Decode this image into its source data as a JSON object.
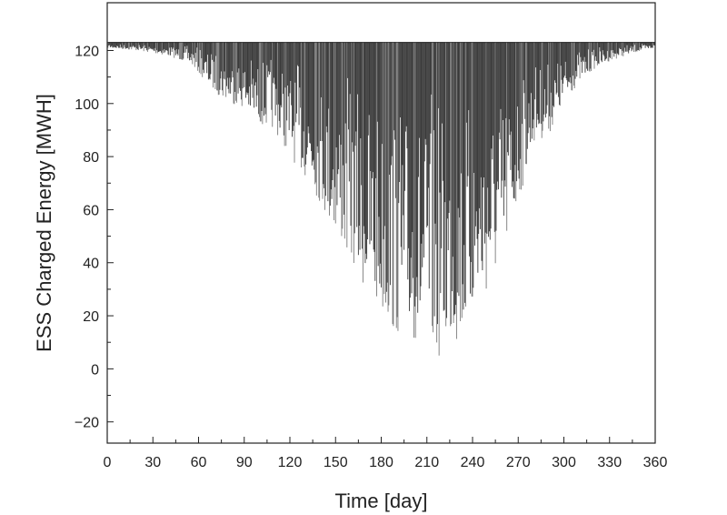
{
  "chart_data": {
    "type": "area",
    "xlabel": "Time [day]",
    "ylabel": "ESS Charged Energy [MWH]",
    "xlim": [
      0,
      360
    ],
    "ylim": [
      -28,
      138
    ],
    "xticks": [
      0,
      30,
      60,
      90,
      120,
      150,
      180,
      210,
      240,
      270,
      300,
      330,
      360
    ],
    "yticks": [
      -20,
      0,
      20,
      40,
      60,
      80,
      100,
      120
    ],
    "grid": false,
    "series": [
      {
        "baseline": 123,
        "color": "#3a3a3a",
        "envelope": [
          {
            "x": 0,
            "y": 121
          },
          {
            "x": 20,
            "y": 120
          },
          {
            "x": 40,
            "y": 118
          },
          {
            "x": 55,
            "y": 115
          },
          {
            "x": 65,
            "y": 108
          },
          {
            "x": 75,
            "y": 102
          },
          {
            "x": 90,
            "y": 98
          },
          {
            "x": 100,
            "y": 92
          },
          {
            "x": 110,
            "y": 90
          },
          {
            "x": 120,
            "y": 80
          },
          {
            "x": 135,
            "y": 68
          },
          {
            "x": 150,
            "y": 50
          },
          {
            "x": 160,
            "y": 40
          },
          {
            "x": 170,
            "y": 28
          },
          {
            "x": 180,
            "y": 20
          },
          {
            "x": 190,
            "y": 12
          },
          {
            "x": 200,
            "y": 10
          },
          {
            "x": 210,
            "y": 8
          },
          {
            "x": 217,
            "y": 4
          },
          {
            "x": 225,
            "y": 9
          },
          {
            "x": 233,
            "y": 10
          },
          {
            "x": 240,
            "y": 20
          },
          {
            "x": 250,
            "y": 28
          },
          {
            "x": 260,
            "y": 40
          },
          {
            "x": 270,
            "y": 62
          },
          {
            "x": 280,
            "y": 85
          },
          {
            "x": 290,
            "y": 88
          },
          {
            "x": 300,
            "y": 100
          },
          {
            "x": 310,
            "y": 108
          },
          {
            "x": 320,
            "y": 113
          },
          {
            "x": 330,
            "y": 116
          },
          {
            "x": 345,
            "y": 119
          },
          {
            "x": 360,
            "y": 121
          }
        ]
      }
    ]
  }
}
